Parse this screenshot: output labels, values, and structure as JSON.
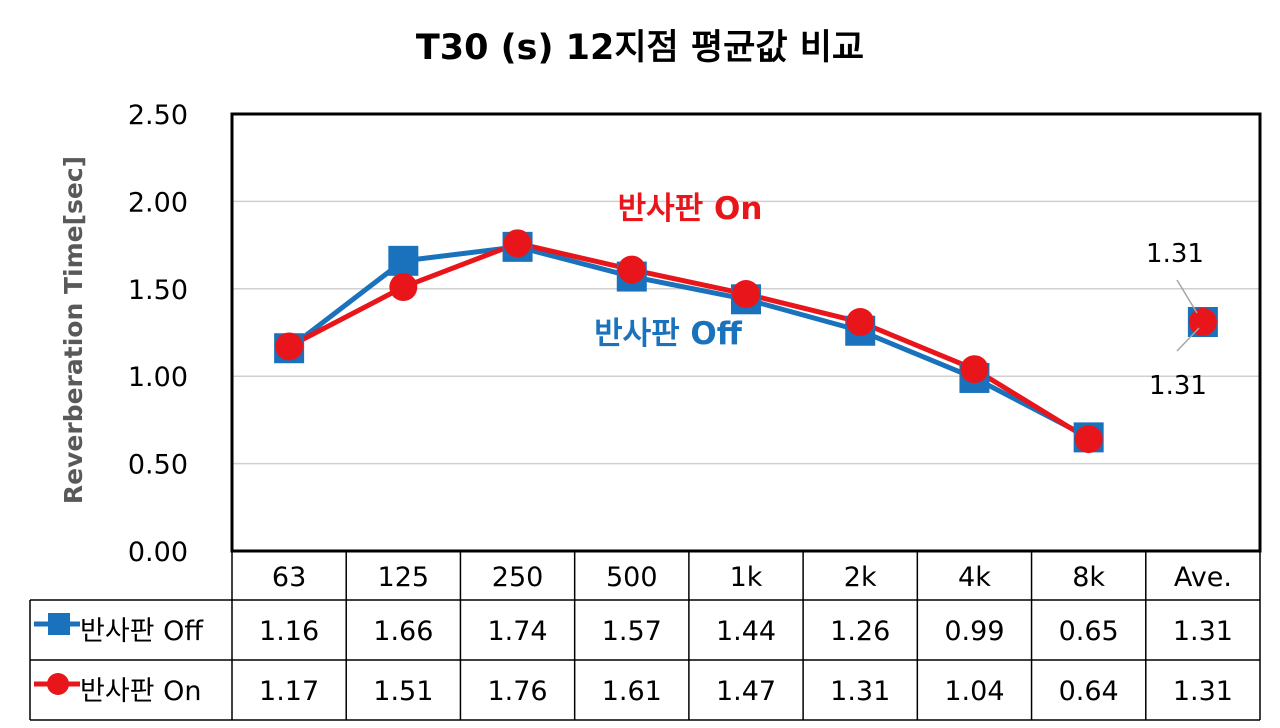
{
  "chart_data": {
    "type": "line",
    "title": "T30 (s) 12지점 평균값 비교",
    "ylabel": "Reverberation Time[sec]",
    "xlabel": "",
    "ylim": [
      0,
      2.5
    ],
    "yticks": [
      "0.00",
      "0.50",
      "1.00",
      "1.50",
      "2.00",
      "2.50"
    ],
    "categories": [
      "63",
      "125",
      "250",
      "500",
      "1k",
      "2k",
      "4k",
      "8k",
      "Ave."
    ],
    "series": [
      {
        "name": "반사판 Off",
        "color": "#1a72bd",
        "marker": "square",
        "values": [
          1.16,
          1.66,
          1.74,
          1.57,
          1.44,
          1.26,
          0.99,
          0.65,
          1.31
        ],
        "labels": [
          "1.16",
          "1.66",
          "1.74",
          "1.57",
          "1.44",
          "1.26",
          "0.99",
          "0.65",
          "1.31"
        ]
      },
      {
        "name": "반사판 On",
        "color": "#e8161b",
        "marker": "circle",
        "values": [
          1.17,
          1.51,
          1.76,
          1.61,
          1.47,
          1.31,
          1.04,
          0.64,
          1.31
        ],
        "labels": [
          "1.17",
          "1.51",
          "1.76",
          "1.61",
          "1.47",
          "1.31",
          "1.04",
          "0.64",
          "1.31"
        ]
      }
    ],
    "annotations": {
      "on_label": "반사판 On",
      "off_label": "반사판 Off",
      "ave_on": "1.31",
      "ave_off": "1.31"
    },
    "grid": true,
    "data_table": true,
    "line_break_before_last": true
  }
}
